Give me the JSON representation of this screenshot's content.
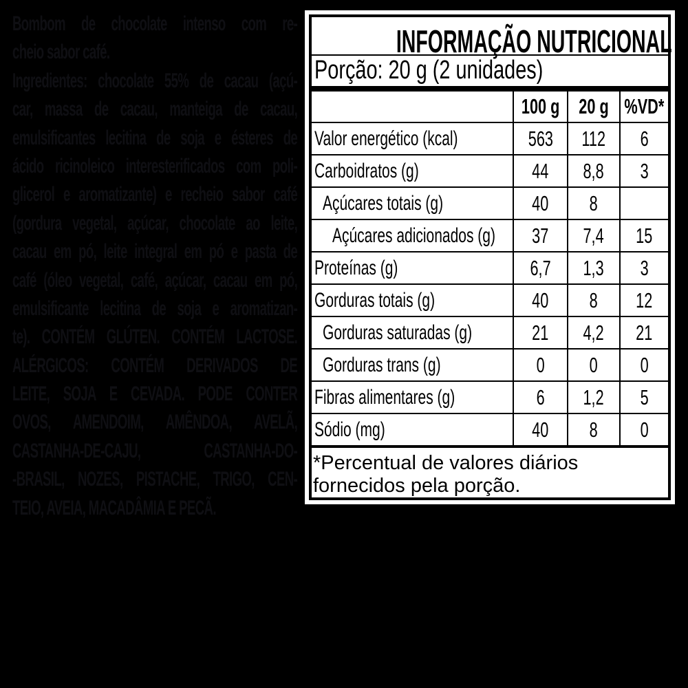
{
  "colors": {
    "page_background": "#000000",
    "label_background": "#ffffff",
    "label_text": "#000000",
    "faint_text": "#0f0f13"
  },
  "left_panel": {
    "lines": [
      {
        "text": "Bombom de chocolate intenso com re-",
        "justify": true
      },
      {
        "text": "cheio sabor café.",
        "justify": false
      },
      {
        "text": "Ingredientes: chocolate 55% de cacau (açú-",
        "justify": true
      },
      {
        "text": "car, massa de cacau, manteiga de cacau,",
        "justify": true
      },
      {
        "text": "emulsificantes lecitina de soja e ésteres de",
        "justify": true
      },
      {
        "text": "ácido ricinoleico interesterificados com poli-",
        "justify": true
      },
      {
        "text": "glicerol e aromatizante) e recheio sabor café",
        "justify": true
      },
      {
        "text": "(gordura vegetal, açúcar, chocolate ao leite,",
        "justify": true
      },
      {
        "text": "cacau em pó, leite integral em pó e pasta de",
        "justify": true
      },
      {
        "text": "café (óleo vegetal, café, açúcar, cacau em pó,",
        "justify": true
      },
      {
        "text": "emulsificante lecitina de soja e aromatizan-",
        "justify": true
      },
      {
        "text": "te). CONTÉM GLÚTEN. CONTÉM LACTOSE.",
        "justify": true
      },
      {
        "text": "ALÉRGICOS: CONTÉM DERIVADOS DE",
        "justify": true
      },
      {
        "text": "LEITE, SOJA E CEVADA. PODE CONTER",
        "justify": true
      },
      {
        "text": "OVOS, AMENDOIM, AMÊNDOA, AVELÃ,",
        "justify": true
      },
      {
        "text": "CASTANHA-DE-CAJU, CASTANHA-DO-",
        "justify": true
      },
      {
        "text": "-BRASIL, NOZES, PISTACHE, TRIGO, CEN-",
        "justify": true
      },
      {
        "text": "TEIO, AVEIA, MACADÂMIA E PECÃ.",
        "justify": false
      }
    ]
  },
  "nutrition_label": {
    "title": "INFORMAÇÃO NUTRICIONAL",
    "serving": "Porção: 20 g (2 unidades)",
    "columns": [
      "",
      "100 g",
      "20 g",
      "%VD*"
    ],
    "rows": [
      {
        "label": "Valor energético (kcal)",
        "indent": 0,
        "per_100g": "563",
        "per_20g": "112",
        "vd": "6"
      },
      {
        "label": "Carboidratos (g)",
        "indent": 0,
        "per_100g": "44",
        "per_20g": "8,8",
        "vd": "3"
      },
      {
        "label": "Açúcares totais (g)",
        "indent": 1,
        "per_100g": "40",
        "per_20g": "8",
        "vd": ""
      },
      {
        "label": "Açúcares adicionados (g)",
        "indent": 2,
        "per_100g": "37",
        "per_20g": "7,4",
        "vd": "15"
      },
      {
        "label": "Proteínas (g)",
        "indent": 0,
        "per_100g": "6,7",
        "per_20g": "1,3",
        "vd": "3"
      },
      {
        "label": "Gorduras totais (g)",
        "indent": 0,
        "per_100g": "40",
        "per_20g": "8",
        "vd": "12"
      },
      {
        "label": "Gorduras saturadas (g)",
        "indent": 1,
        "per_100g": "21",
        "per_20g": "4,2",
        "vd": "21"
      },
      {
        "label": "Gorduras trans (g)",
        "indent": 1,
        "per_100g": "0",
        "per_20g": "0",
        "vd": "0"
      },
      {
        "label": "Fibras alimentares (g)",
        "indent": 0,
        "per_100g": "6",
        "per_20g": "1,2",
        "vd": "5"
      },
      {
        "label": "Sódio (mg)",
        "indent": 0,
        "per_100g": "40",
        "per_20g": "8",
        "vd": "0"
      }
    ],
    "footnote": "*Percentual de valores diários fornecidos pela porção."
  }
}
